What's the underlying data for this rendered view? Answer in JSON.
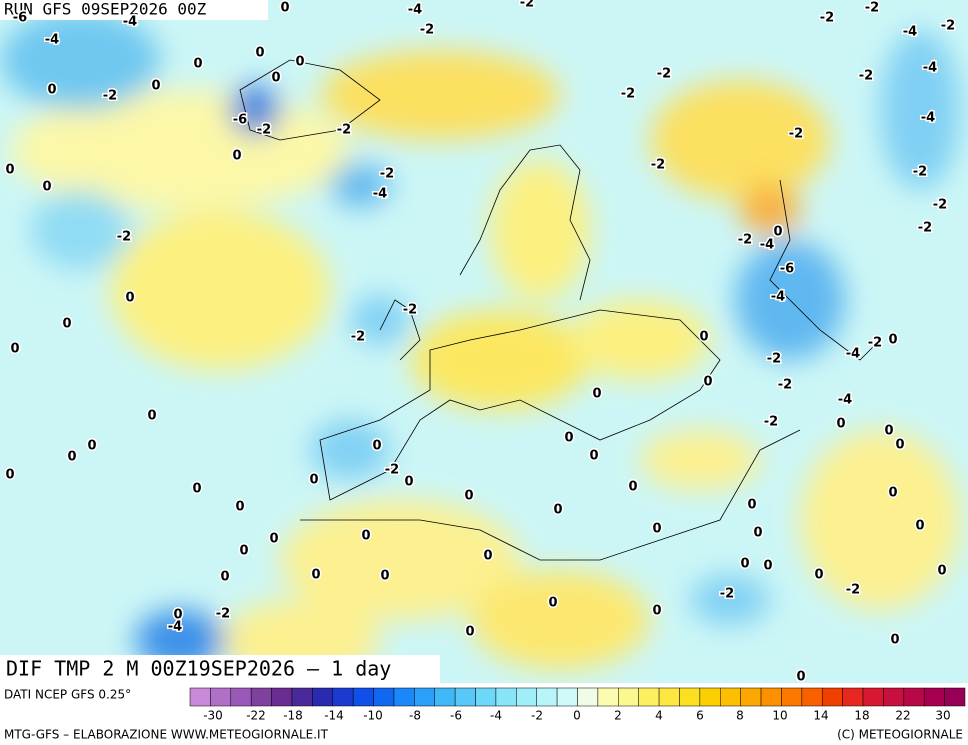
{
  "header": {
    "run": "RUN GFS 09SEP2026 00Z"
  },
  "map": {
    "title": "DIF TMP 2 M 00Z19SEP2026 – 1 day",
    "contour_labels": [
      -6,
      -4,
      -4,
      0,
      -4,
      -2,
      -2,
      -2,
      -4,
      -2,
      -2,
      0,
      0,
      0,
      -2,
      -2,
      -4,
      0,
      0,
      0,
      -2,
      -2,
      -6,
      -2,
      -2,
      -2,
      -4,
      0,
      0,
      -2,
      -2,
      0,
      -4,
      -2,
      -2,
      -2,
      -2,
      -4,
      -2,
      0,
      -6,
      0,
      -4,
      -2,
      0,
      -2,
      0,
      -2,
      -4,
      0,
      0,
      -2,
      0,
      -2,
      0,
      0,
      -4,
      -2,
      0,
      0,
      0,
      0,
      0,
      0,
      0,
      0,
      -2,
      0,
      0,
      0,
      0,
      0,
      0,
      0,
      0,
      0,
      0,
      0,
      0,
      0,
      0,
      0,
      0,
      0,
      0,
      0,
      0,
      0,
      0,
      0,
      0,
      -2,
      -2,
      0,
      0,
      -2,
      -4,
      0,
      0,
      0,
      0
    ]
  },
  "footer": {
    "source": "DATI NCEP GFS 0.25°",
    "credit": "MTG-GFS – ELABORAZIONE WWW.METEOGIORNALE.IT",
    "copyright": "(C) METEOGIORNALE",
    "colorbar": {
      "ticks": [
        -30,
        -22,
        -18,
        -14,
        -10,
        -8,
        -6,
        -4,
        -2,
        0,
        2,
        4,
        6,
        8,
        10,
        14,
        18,
        22,
        30
      ],
      "colors": [
        "#c88ad8",
        "#b070c8",
        "#9a58b8",
        "#8040a0",
        "#6a2c90",
        "#4a2a98",
        "#2a2ab0",
        "#1a3ad0",
        "#1050e8",
        "#1068f0",
        "#1a88f8",
        "#2aa0f8",
        "#40b8f8",
        "#58c8f8",
        "#6ed8f8",
        "#88e4f8",
        "#a0eef8",
        "#b8f4f8",
        "#d0fafa",
        "#f0fce8",
        "#fcfcb0",
        "#fcf890",
        "#fcf060",
        "#fce840",
        "#fce020",
        "#fcd000",
        "#fcc000",
        "#fca800",
        "#fc9000",
        "#fc7800",
        "#f86000",
        "#f04000",
        "#e82820",
        "#d81830",
        "#c81040",
        "#b80848",
        "#a80050",
        "#980058"
      ]
    }
  }
}
